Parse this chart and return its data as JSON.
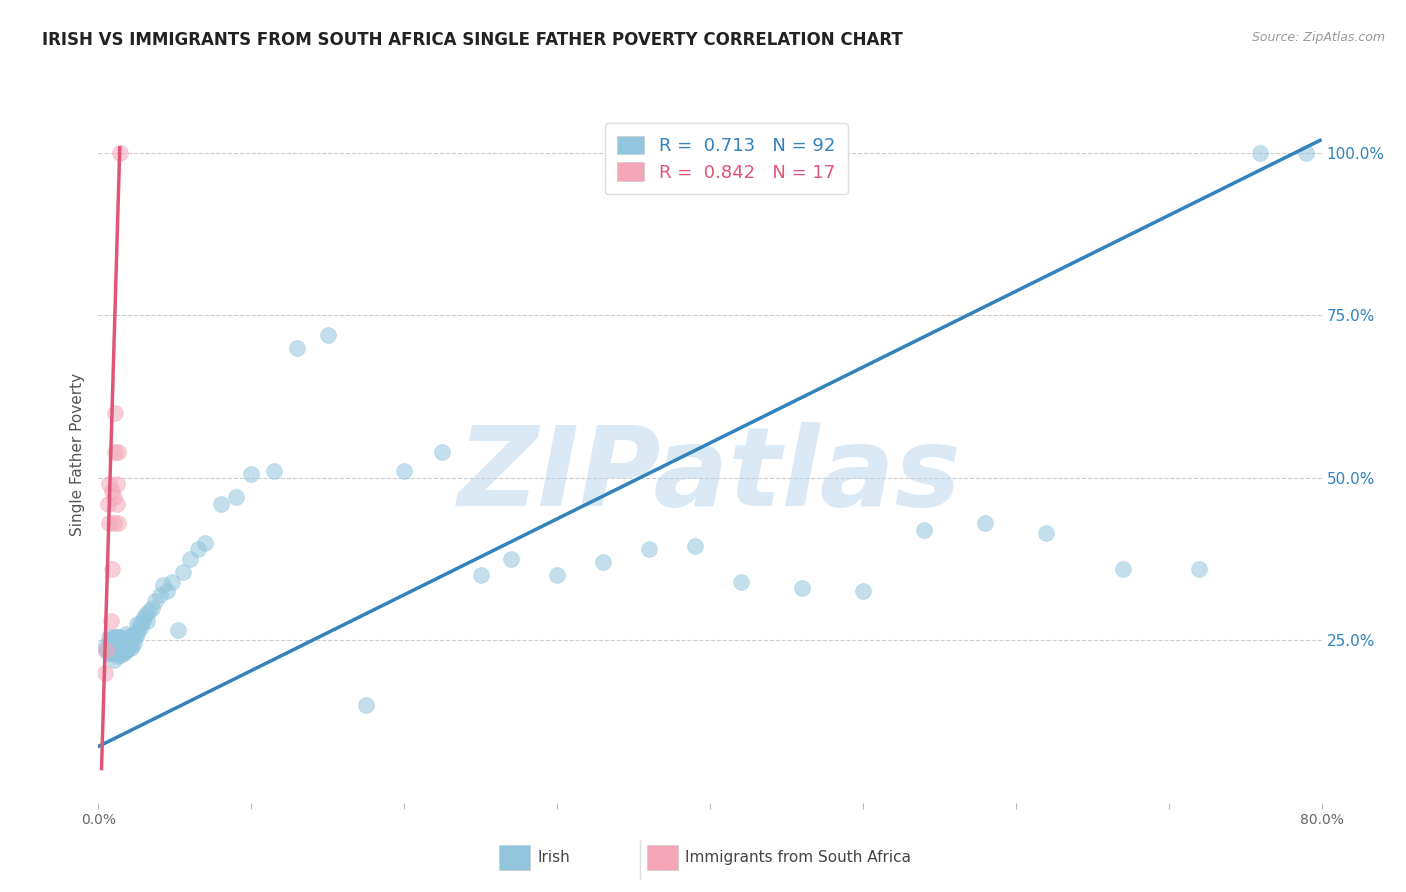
{
  "title": "IRISH VS IMMIGRANTS FROM SOUTH AFRICA SINGLE FATHER POVERTY CORRELATION CHART",
  "source": "Source: ZipAtlas.com",
  "ylabel": "Single Father Poverty",
  "xlim": [
    0.0,
    0.8
  ],
  "ylim": [
    0.0,
    1.07
  ],
  "xticks": [
    0.0,
    0.1,
    0.2,
    0.3,
    0.4,
    0.5,
    0.6,
    0.7,
    0.8
  ],
  "xticklabels": [
    "0.0%",
    "",
    "",
    "",
    "",
    "",
    "",
    "",
    "80.0%"
  ],
  "ytick_positions": [
    0.25,
    0.5,
    0.75,
    1.0
  ],
  "ytick_labels": [
    "25.0%",
    "50.0%",
    "75.0%",
    "100.0%"
  ],
  "blue_R": "0.713",
  "blue_N": "92",
  "pink_R": "0.842",
  "pink_N": "17",
  "blue_color": "#92c5de",
  "pink_color": "#f4a6b8",
  "blue_line_color": "#3182bd",
  "pink_line_color": "#e05577",
  "watermark": "ZIPatlas",
  "watermark_color": "#b8d4ea",
  "background_color": "#ffffff",
  "grid_color": "#cccccc",
  "title_fontsize": 12,
  "axis_label_fontsize": 11,
  "tick_fontsize": 10,
  "blue_scatter_x": [
    0.004,
    0.005,
    0.006,
    0.007,
    0.007,
    0.008,
    0.008,
    0.009,
    0.009,
    0.01,
    0.01,
    0.01,
    0.011,
    0.011,
    0.011,
    0.012,
    0.012,
    0.012,
    0.013,
    0.013,
    0.013,
    0.014,
    0.014,
    0.014,
    0.015,
    0.015,
    0.015,
    0.016,
    0.016,
    0.016,
    0.017,
    0.017,
    0.018,
    0.018,
    0.018,
    0.019,
    0.019,
    0.02,
    0.02,
    0.021,
    0.021,
    0.022,
    0.022,
    0.023,
    0.023,
    0.024,
    0.025,
    0.025,
    0.026,
    0.027,
    0.028,
    0.029,
    0.03,
    0.031,
    0.032,
    0.033,
    0.035,
    0.037,
    0.04,
    0.042,
    0.045,
    0.048,
    0.052,
    0.055,
    0.06,
    0.065,
    0.07,
    0.08,
    0.09,
    0.1,
    0.115,
    0.13,
    0.15,
    0.175,
    0.2,
    0.225,
    0.25,
    0.27,
    0.3,
    0.33,
    0.36,
    0.39,
    0.42,
    0.46,
    0.5,
    0.54,
    0.58,
    0.62,
    0.67,
    0.72,
    0.76,
    0.79
  ],
  "blue_scatter_y": [
    0.24,
    0.235,
    0.23,
    0.245,
    0.255,
    0.23,
    0.25,
    0.235,
    0.25,
    0.22,
    0.235,
    0.255,
    0.23,
    0.24,
    0.255,
    0.225,
    0.24,
    0.255,
    0.23,
    0.24,
    0.255,
    0.23,
    0.242,
    0.255,
    0.228,
    0.238,
    0.252,
    0.232,
    0.24,
    0.252,
    0.23,
    0.245,
    0.235,
    0.245,
    0.26,
    0.235,
    0.25,
    0.24,
    0.255,
    0.238,
    0.255,
    0.242,
    0.258,
    0.245,
    0.26,
    0.255,
    0.26,
    0.275,
    0.265,
    0.275,
    0.27,
    0.28,
    0.285,
    0.29,
    0.28,
    0.295,
    0.3,
    0.31,
    0.32,
    0.335,
    0.325,
    0.34,
    0.265,
    0.355,
    0.375,
    0.39,
    0.4,
    0.46,
    0.47,
    0.505,
    0.51,
    0.7,
    0.72,
    0.15,
    0.51,
    0.54,
    0.35,
    0.375,
    0.35,
    0.37,
    0.39,
    0.395,
    0.34,
    0.33,
    0.325,
    0.42,
    0.43,
    0.415,
    0.36,
    0.36,
    1.0,
    1.0
  ],
  "pink_scatter_x": [
    0.004,
    0.005,
    0.006,
    0.007,
    0.007,
    0.008,
    0.009,
    0.009,
    0.01,
    0.01,
    0.011,
    0.011,
    0.012,
    0.012,
    0.013,
    0.013,
    0.014
  ],
  "pink_scatter_y": [
    0.2,
    0.235,
    0.46,
    0.43,
    0.49,
    0.28,
    0.36,
    0.48,
    0.43,
    0.47,
    0.54,
    0.6,
    0.46,
    0.49,
    0.43,
    0.54,
    1.0
  ],
  "blue_line_x": [
    -0.01,
    0.8
  ],
  "blue_line_y": [
    0.075,
    1.02
  ],
  "pink_line_x": [
    0.002,
    0.014
  ],
  "pink_line_y": [
    0.05,
    1.01
  ]
}
